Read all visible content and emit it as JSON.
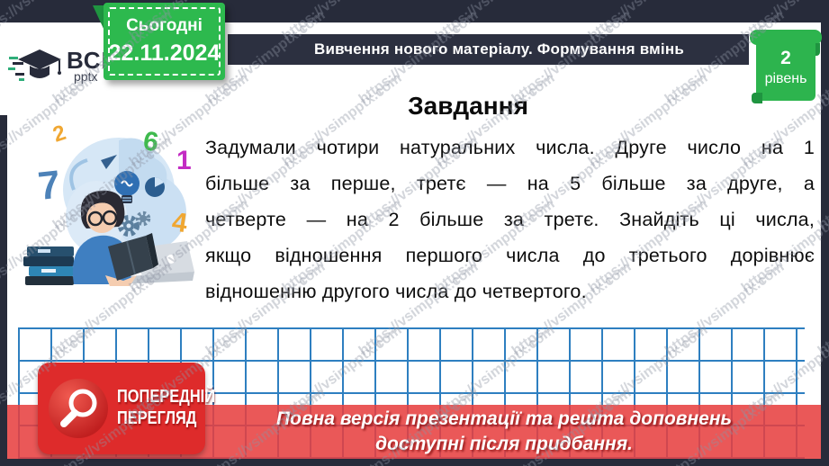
{
  "branding": {
    "logo_text": "ВСІМ",
    "logo_sub": "pptx",
    "watermark": "https://vsimpptx.com"
  },
  "header": {
    "date_label": "Сьогодні",
    "date_value": "22.11.2024",
    "topic": "Вивчення нового матеріалу.  Формування вмінь",
    "level_number": "2",
    "level_label": "рівень"
  },
  "slide": {
    "title": "Завдання",
    "body_lines": [
      "Задумали чотири натуральних числа. Друге число на 1",
      "більше за перше, третє — на 5 більше за друге, а",
      "четверте — на 2 більше за третє. Знайдіть ці числа,",
      "якщо відношення першого числа до третього дорівнює",
      "відношенню другого числа до четвертого."
    ]
  },
  "illustration": {
    "numbers": [
      {
        "value": "2",
        "color": "#f0a732"
      },
      {
        "value": "6",
        "color": "#3fba4e"
      },
      {
        "value": "1",
        "color": "#c32cc3"
      },
      {
        "value": "7",
        "color": "#4d82b8"
      },
      {
        "value": "4",
        "color": "#f0a732"
      }
    ]
  },
  "preview": {
    "badge_line1": "ПОПЕРЕДНІЙ",
    "badge_line2": "ПЕРЕГЛЯД",
    "footer_line1": "Повна версія презентації та решта доповнень",
    "footer_line2": "доступні після придбання."
  },
  "colors": {
    "frame_dark": "#272b3a",
    "topic_bar": "#2c3040",
    "badge_green": "#2db94e",
    "badge_green_dark": "#1f9440",
    "grid_blue": "#2e7fc0",
    "footer_red": "#e73f3f",
    "stamp_red": "#de2b2b"
  }
}
